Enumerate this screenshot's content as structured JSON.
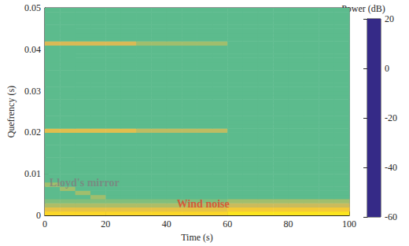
{
  "chart_data": {
    "type": "heatmap",
    "xlabel": "Time (s)",
    "ylabel": "Quefrency (s)",
    "xlim": [
      0,
      100
    ],
    "xticks": [
      0,
      20,
      40,
      60,
      80,
      100
    ],
    "ylim": [
      0,
      0.05
    ],
    "yticks": [
      0,
      0.01,
      0.02,
      0.03,
      0.04,
      0.05
    ],
    "grid": false,
    "x_bins": [
      0,
      5,
      10,
      15,
      20,
      25,
      30,
      35,
      40,
      45,
      50,
      55,
      60,
      65,
      70,
      75,
      80,
      85,
      90,
      95,
      100
    ],
    "y_bins": [
      0,
      0.001,
      0.002,
      0.003,
      0.004,
      0.005,
      0.006,
      0.007,
      0.008,
      0.009,
      0.01,
      0.011,
      0.012,
      0.013,
      0.014,
      0.015,
      0.016,
      0.017,
      0.018,
      0.019,
      0.02,
      0.021,
      0.022,
      0.023,
      0.024,
      0.025,
      0.026,
      0.027,
      0.028,
      0.029,
      0.03,
      0.031,
      0.032,
      0.033,
      0.034,
      0.035,
      0.036,
      0.037,
      0.038,
      0.039,
      0.04,
      0.041,
      0.042,
      0.043,
      0.044,
      0.045,
      0.046,
      0.047,
      0.048,
      0.049,
      0.05
    ],
    "values": [
      [
        12,
        12,
        12,
        12,
        12,
        12,
        12,
        12,
        12,
        12,
        12,
        12,
        15,
        15,
        15,
        15,
        15,
        15,
        15,
        15
      ],
      [
        4,
        4,
        4,
        4,
        4,
        4,
        4,
        4,
        4,
        4,
        4,
        4,
        8,
        8,
        8,
        8,
        8,
        8,
        8,
        8
      ],
      [
        -6,
        -6,
        -6,
        -6,
        -6,
        -6,
        -6,
        -6,
        -6,
        -6,
        -6,
        -6,
        -2,
        -2,
        -2,
        -2,
        -2,
        -2,
        -2,
        -2
      ],
      [
        -12,
        -12,
        -12,
        -12,
        -12,
        -12,
        -12,
        -12,
        -12,
        -12,
        -12,
        -12,
        -8,
        -8,
        -8,
        -8,
        -8,
        -8,
        -8,
        -8
      ],
      [
        -16,
        -16,
        -16,
        -8,
        -16,
        -16,
        -16,
        -16,
        -16,
        -16,
        -16,
        -16,
        -16,
        -16,
        -16,
        -16,
        -16,
        -16,
        -16,
        -16
      ],
      [
        -16,
        -16,
        -8,
        -16,
        -16,
        -16,
        -16,
        -16,
        -16,
        -16,
        -16,
        -16,
        -16,
        -16,
        -16,
        -16,
        -16,
        -16,
        -16,
        -16
      ],
      [
        -16,
        -8,
        -16,
        -16,
        -16,
        -16,
        -16,
        -16,
        -16,
        -16,
        -16,
        -16,
        -16,
        -16,
        -16,
        -16,
        -16,
        -16,
        -16,
        -16
      ],
      [
        -8,
        -16,
        -16,
        -16,
        -16,
        -16,
        -16,
        -16,
        -16,
        -16,
        -16,
        -16,
        -16,
        -16,
        -16,
        -16,
        -16,
        -16,
        -16,
        -16
      ],
      [
        -16,
        -16,
        -16,
        -16,
        -16,
        -16,
        -16,
        -16,
        -16,
        -16,
        -16,
        -16,
        -16,
        -16,
        -16,
        -16,
        -16,
        -16,
        -16,
        -16
      ],
      [
        -16,
        -16,
        -16,
        -16,
        -16,
        -16,
        -16,
        -16,
        -16,
        -16,
        -16,
        -16,
        -16,
        -16,
        -16,
        -16,
        -16,
        -16,
        -16,
        -16
      ],
      [
        -16,
        -16,
        -16,
        -16,
        -16,
        -16,
        -16,
        -16,
        -16,
        -16,
        -16,
        -16,
        -16,
        -16,
        -16,
        -16,
        -16,
        -16,
        -16,
        -16
      ],
      [
        -16,
        -16,
        -16,
        -16,
        -16,
        -16,
        -16,
        -16,
        -16,
        -16,
        -16,
        -16,
        -16,
        -16,
        -16,
        -16,
        -16,
        -16,
        -16,
        -16
      ],
      [
        -16,
        -16,
        -16,
        -16,
        -16,
        -16,
        -16,
        -16,
        -16,
        -16,
        -16,
        -16,
        -16,
        -16,
        -16,
        -16,
        -16,
        -16,
        -16,
        -16
      ],
      [
        -16,
        -16,
        -16,
        -16,
        -16,
        -16,
        -16,
        -16,
        -16,
        -16,
        -16,
        -16,
        -16,
        -16,
        -16,
        -16,
        -16,
        -16,
        -16,
        -16
      ],
      [
        -16,
        -16,
        -16,
        -16,
        -16,
        -16,
        -16,
        -16,
        -16,
        -16,
        -16,
        -16,
        -16,
        -16,
        -16,
        -16,
        -16,
        -16,
        -16,
        -16
      ],
      [
        -16,
        -16,
        -16,
        -16,
        -16,
        -16,
        -16,
        -16,
        -16,
        -16,
        -16,
        -16,
        -16,
        -16,
        -16,
        -16,
        -16,
        -16,
        -16,
        -16
      ],
      [
        -16,
        -16,
        -16,
        -16,
        -16,
        -16,
        -16,
        -16,
        -16,
        -16,
        -16,
        -16,
        -16,
        -16,
        -16,
        -16,
        -16,
        -16,
        -16,
        -16
      ],
      [
        -16,
        -16,
        -16,
        -16,
        -16,
        -16,
        -16,
        -16,
        -16,
        -16,
        -16,
        -16,
        -16,
        -16,
        -16,
        -16,
        -16,
        -16,
        -16,
        -16
      ],
      [
        -16,
        -16,
        -16,
        -16,
        -16,
        -16,
        -16,
        -16,
        -16,
        -16,
        -16,
        -16,
        -16,
        -16,
        -16,
        -16,
        -16,
        -16,
        -16,
        -16
      ],
      [
        -16,
        -16,
        -16,
        -16,
        -16,
        -16,
        -16,
        -16,
        -16,
        -16,
        -16,
        -16,
        -16,
        -16,
        -16,
        -16,
        -16,
        -16,
        -16,
        -16
      ],
      [
        2,
        2,
        2,
        2,
        2,
        2,
        -4,
        -4,
        -4,
        -4,
        -4,
        -4,
        -16,
        -16,
        -16,
        -16,
        -16,
        -16,
        -16,
        -16
      ],
      [
        -16,
        -16,
        -16,
        -16,
        -16,
        -16,
        -16,
        -16,
        -16,
        -16,
        -16,
        -16,
        -16,
        -16,
        -16,
        -16,
        -16,
        -16,
        -16,
        -16
      ],
      [
        -16,
        -16,
        -16,
        -16,
        -16,
        -16,
        -16,
        -16,
        -16,
        -16,
        -16,
        -16,
        -16,
        -16,
        -16,
        -16,
        -16,
        -16,
        -16,
        -16
      ],
      [
        -16,
        -16,
        -16,
        -16,
        -16,
        -16,
        -16,
        -16,
        -16,
        -16,
        -16,
        -16,
        -16,
        -16,
        -16,
        -16,
        -16,
        -16,
        -16,
        -16
      ],
      [
        -16,
        -16,
        -16,
        -16,
        -16,
        -16,
        -16,
        -16,
        -16,
        -16,
        -16,
        -16,
        -16,
        -16,
        -16,
        -16,
        -16,
        -16,
        -16,
        -16
      ],
      [
        -16,
        -16,
        -16,
        -16,
        -16,
        -16,
        -16,
        -16,
        -16,
        -16,
        -16,
        -16,
        -16,
        -16,
        -16,
        -16,
        -16,
        -16,
        -16,
        -16
      ],
      [
        -16,
        -16,
        -16,
        -16,
        -16,
        -16,
        -16,
        -16,
        -16,
        -16,
        -16,
        -16,
        -16,
        -16,
        -16,
        -16,
        -16,
        -16,
        -16,
        -16
      ],
      [
        -16,
        -16,
        -16,
        -16,
        -16,
        -16,
        -16,
        -16,
        -16,
        -16,
        -16,
        -16,
        -16,
        -16,
        -16,
        -16,
        -16,
        -16,
        -16,
        -16
      ],
      [
        -16,
        -16,
        -16,
        -16,
        -16,
        -16,
        -16,
        -16,
        -16,
        -16,
        -16,
        -16,
        -16,
        -16,
        -16,
        -16,
        -16,
        -16,
        -16,
        -16
      ],
      [
        -16,
        -16,
        -16,
        -16,
        -16,
        -16,
        -16,
        -16,
        -16,
        -16,
        -16,
        -16,
        -16,
        -16,
        -16,
        -16,
        -16,
        -16,
        -16,
        -16
      ],
      [
        -16,
        -16,
        -16,
        -16,
        -16,
        -16,
        -16,
        -16,
        -16,
        -16,
        -16,
        -16,
        -16,
        -16,
        -16,
        -16,
        -16,
        -16,
        -16,
        -16
      ],
      [
        -16,
        -16,
        -16,
        -16,
        -16,
        -16,
        -16,
        -16,
        -16,
        -16,
        -16,
        -16,
        -16,
        -16,
        -16,
        -16,
        -16,
        -16,
        -16,
        -16
      ],
      [
        -16,
        -16,
        -16,
        -16,
        -16,
        -16,
        -16,
        -16,
        -16,
        -16,
        -16,
        -16,
        -16,
        -16,
        -16,
        -16,
        -16,
        -16,
        -16,
        -16
      ],
      [
        -16,
        -16,
        -16,
        -16,
        -16,
        -16,
        -16,
        -16,
        -16,
        -16,
        -16,
        -16,
        -16,
        -16,
        -16,
        -16,
        -16,
        -16,
        -16,
        -16
      ],
      [
        -16,
        -16,
        -16,
        -16,
        -16,
        -16,
        -16,
        -16,
        -16,
        -16,
        -16,
        -16,
        -16,
        -16,
        -16,
        -16,
        -16,
        -16,
        -16,
        -16
      ],
      [
        -16,
        -16,
        -16,
        -16,
        -16,
        -16,
        -16,
        -16,
        -16,
        -16,
        -16,
        -16,
        -16,
        -16,
        -16,
        -16,
        -16,
        -16,
        -16,
        -16
      ],
      [
        -16,
        -16,
        -16,
        -16,
        -16,
        -16,
        -16,
        -16,
        -16,
        -16,
        -16,
        -16,
        -16,
        -16,
        -16,
        -16,
        -16,
        -16,
        -16,
        -16
      ],
      [
        -16,
        -16,
        -16,
        -16,
        -16,
        -16,
        -16,
        -16,
        -16,
        -16,
        -16,
        -16,
        -16,
        -16,
        -16,
        -16,
        -16,
        -16,
        -16,
        -16
      ],
      [
        -16,
        -16,
        -16,
        -16,
        -16,
        -16,
        -16,
        -16,
        -16,
        -16,
        -16,
        -16,
        -16,
        -16,
        -16,
        -16,
        -16,
        -16,
        -16,
        -16
      ],
      [
        -16,
        -16,
        -16,
        -16,
        -16,
        -16,
        -16,
        -16,
        -16,
        -16,
        -16,
        -16,
        -16,
        -16,
        -16,
        -16,
        -16,
        -16,
        -16,
        -16
      ],
      [
        -16,
        -16,
        -16,
        -16,
        -16,
        -16,
        -16,
        -16,
        -16,
        -16,
        -16,
        -16,
        -16,
        -16,
        -16,
        -16,
        -16,
        -16,
        -16,
        -16
      ],
      [
        0,
        0,
        0,
        0,
        0,
        0,
        -8,
        -8,
        -8,
        -8,
        -8,
        -8,
        -16,
        -16,
        -16,
        -16,
        -16,
        -16,
        -16,
        -16
      ],
      [
        -16,
        -16,
        -16,
        -16,
        -16,
        -16,
        -16,
        -16,
        -16,
        -16,
        -16,
        -16,
        -16,
        -16,
        -16,
        -16,
        -16,
        -16,
        -16,
        -16
      ],
      [
        -16,
        -16,
        -16,
        -16,
        -16,
        -16,
        -16,
        -16,
        -16,
        -16,
        -16,
        -16,
        -16,
        -16,
        -16,
        -16,
        -16,
        -16,
        -16,
        -16
      ],
      [
        -16,
        -16,
        -16,
        -16,
        -16,
        -16,
        -16,
        -16,
        -16,
        -16,
        -16,
        -16,
        -16,
        -16,
        -16,
        -16,
        -16,
        -16,
        -16,
        -16
      ],
      [
        -16,
        -16,
        -16,
        -16,
        -16,
        -16,
        -16,
        -16,
        -16,
        -16,
        -16,
        -16,
        -16,
        -16,
        -16,
        -16,
        -16,
        -16,
        -16,
        -16
      ],
      [
        -16,
        -16,
        -16,
        -16,
        -16,
        -16,
        -16,
        -16,
        -16,
        -16,
        -16,
        -16,
        -16,
        -16,
        -16,
        -16,
        -16,
        -16,
        -16,
        -16
      ],
      [
        -16,
        -16,
        -16,
        -16,
        -16,
        -16,
        -16,
        -16,
        -16,
        -16,
        -16,
        -16,
        -16,
        -16,
        -16,
        -16,
        -16,
        -16,
        -16,
        -16
      ],
      [
        -16,
        -16,
        -16,
        -16,
        -16,
        -16,
        -16,
        -16,
        -16,
        -16,
        -16,
        -16,
        -16,
        -16,
        -16,
        -16,
        -16,
        -16,
        -16,
        -16
      ],
      [
        -16,
        -16,
        -16,
        -16,
        -16,
        -16,
        -16,
        -16,
        -16,
        -16,
        -16,
        -16,
        -16,
        -16,
        -16,
        -16,
        -16,
        -16,
        -16,
        -16
      ]
    ],
    "colorbar": {
      "title": "Power (dB)",
      "range": [
        -60,
        20
      ],
      "ticks": [
        -60,
        -40,
        -20,
        0,
        20
      ]
    },
    "annotations": [
      {
        "text": "Lloyd's mirror",
        "x": 13,
        "y": 0.0078,
        "color": "#7f7f7f"
      },
      {
        "text": "Wind noise",
        "x": 52,
        "y": 0.0028,
        "color": "#e2402a"
      }
    ]
  }
}
